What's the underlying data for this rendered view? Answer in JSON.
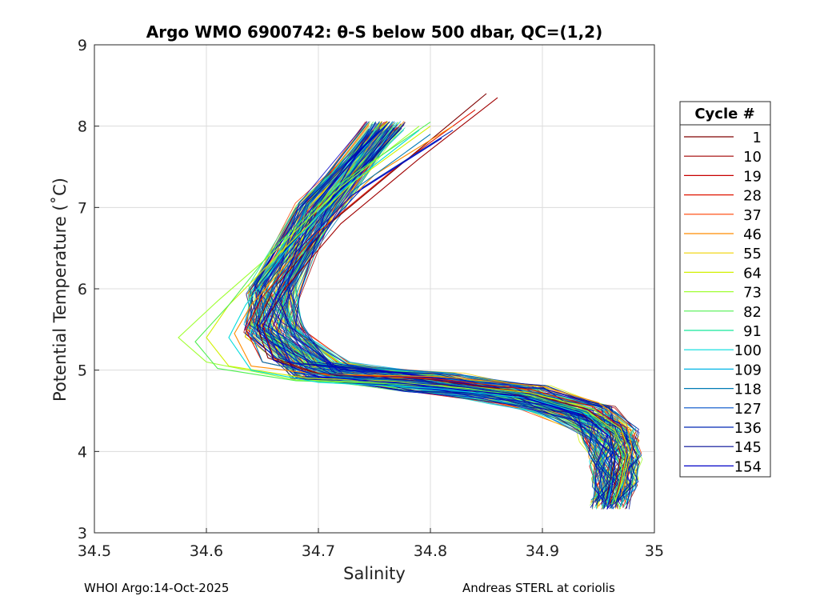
{
  "chart_data": {
    "type": "line",
    "title": "Argo WMO 6900742: θ-S below 500 dbar,  QC=(1,2)",
    "xlabel": "Salinity",
    "ylabel": "Potential Temperature (˚C)",
    "xlim": [
      34.5,
      35
    ],
    "ylim": [
      3,
      9
    ],
    "xticks": [
      "34.5",
      "34.6",
      "34.7",
      "34.8",
      "34.9",
      "35"
    ],
    "yticks": [
      "3",
      "4",
      "5",
      "6",
      "7",
      "8",
      "9"
    ],
    "grid": true,
    "legend": {
      "title": "Cycle #",
      "placement": "outside-right",
      "entries": [
        {
          "label": "1",
          "color": "#800000"
        },
        {
          "label": "10",
          "color": "#a00000"
        },
        {
          "label": "19",
          "color": "#c80000"
        },
        {
          "label": "28",
          "color": "#e01400"
        },
        {
          "label": "37",
          "color": "#ff4000"
        },
        {
          "label": "46",
          "color": "#ff8c00"
        },
        {
          "label": "55",
          "color": "#f0d200"
        },
        {
          "label": "64",
          "color": "#d2f000"
        },
        {
          "label": "73",
          "color": "#a0ff32"
        },
        {
          "label": "82",
          "color": "#50f050"
        },
        {
          "label": "91",
          "color": "#14e69b"
        },
        {
          "label": "100",
          "color": "#00dcdc"
        },
        {
          "label": "109",
          "color": "#00b4e6"
        },
        {
          "label": "118",
          "color": "#007ab4"
        },
        {
          "label": "127",
          "color": "#0050c8"
        },
        {
          "label": "136",
          "color": "#0028b4"
        },
        {
          "label": "145",
          "color": "#000a96"
        },
        {
          "label": "154",
          "color": "#0000c8"
        }
      ]
    },
    "typical_profile": {
      "salinity": [
        34.76,
        34.7,
        34.66,
        34.66,
        34.7,
        34.8,
        34.88,
        34.94,
        34.96,
        34.965,
        34.965,
        34.96
      ],
      "potential_temperature": [
        8.0,
        7.0,
        6.0,
        5.5,
        5.0,
        4.85,
        4.7,
        4.45,
        4.2,
        3.9,
        3.6,
        3.35
      ]
    },
    "series": [
      {
        "name": "1",
        "salinity": [
          34.85,
          34.78,
          34.71,
          34.66,
          34.645,
          34.655,
          34.7,
          34.78,
          34.87,
          34.93,
          34.96,
          34.965,
          34.96,
          34.955
        ],
        "potential_temperature": [
          8.4,
          7.6,
          6.8,
          6.0,
          5.55,
          5.15,
          4.95,
          4.88,
          4.72,
          4.5,
          4.25,
          3.95,
          3.6,
          3.3
        ]
      },
      {
        "name": "10",
        "salinity": [
          34.86,
          34.79,
          34.72,
          34.67,
          34.65,
          34.66,
          34.7,
          34.79,
          34.88,
          34.94,
          34.965,
          34.97,
          34.965,
          34.96
        ],
        "potential_temperature": [
          8.35,
          7.6,
          6.8,
          6.0,
          5.55,
          5.15,
          4.96,
          4.9,
          4.74,
          4.52,
          4.25,
          3.95,
          3.6,
          3.35
        ]
      },
      {
        "name": "28",
        "salinity": [
          34.84,
          34.77,
          34.7,
          34.65,
          34.635,
          34.65,
          34.7,
          34.8,
          34.89,
          34.945,
          34.97,
          34.975,
          34.97,
          34.965
        ],
        "potential_temperature": [
          8.2,
          7.5,
          6.7,
          5.9,
          5.5,
          5.1,
          4.95,
          4.9,
          4.76,
          4.55,
          4.3,
          4.0,
          3.65,
          3.4
        ]
      },
      {
        "name": "46",
        "salinity": [
          34.82,
          34.75,
          34.69,
          34.64,
          34.625,
          34.64,
          34.7,
          34.81,
          34.9,
          34.95,
          34.975,
          34.98,
          34.975,
          34.97
        ],
        "potential_temperature": [
          8.0,
          7.4,
          6.6,
          5.8,
          5.45,
          5.05,
          4.95,
          4.92,
          4.8,
          4.6,
          4.35,
          4.05,
          3.7,
          3.45
        ]
      },
      {
        "name": "64",
        "salinity": [
          34.8,
          34.73,
          34.67,
          34.62,
          34.6,
          34.62,
          34.69,
          34.8,
          34.89,
          34.945,
          34.97,
          34.978,
          34.972,
          34.965
        ],
        "potential_temperature": [
          8.0,
          7.3,
          6.5,
          5.8,
          5.4,
          5.05,
          4.9,
          4.85,
          4.72,
          4.52,
          4.28,
          4.0,
          3.65,
          3.4
        ]
      },
      {
        "name": "73",
        "salinity": [
          34.79,
          34.72,
          34.66,
          34.61,
          34.575,
          34.6,
          34.68,
          34.78,
          34.88,
          34.94,
          34.965,
          34.975,
          34.97,
          34.965
        ],
        "potential_temperature": [
          8.0,
          7.25,
          6.45,
          5.85,
          5.4,
          5.1,
          4.88,
          4.84,
          4.72,
          4.5,
          4.25,
          3.95,
          3.6,
          3.38
        ]
      },
      {
        "name": "82",
        "salinity": [
          34.8,
          34.72,
          34.66,
          34.62,
          34.59,
          34.61,
          34.68,
          34.79,
          34.88,
          34.94,
          34.965,
          34.972,
          34.968,
          34.962
        ],
        "potential_temperature": [
          8.05,
          7.3,
          6.5,
          5.8,
          5.35,
          5.02,
          4.87,
          4.82,
          4.7,
          4.48,
          4.22,
          3.92,
          3.6,
          3.35
        ]
      },
      {
        "name": "100",
        "salinity": [
          34.79,
          34.72,
          34.67,
          34.635,
          34.62,
          34.64,
          34.7,
          34.8,
          34.89,
          34.94,
          34.96,
          34.965,
          34.962,
          34.958
        ],
        "potential_temperature": [
          7.95,
          7.2,
          6.45,
          5.8,
          5.4,
          5.0,
          4.85,
          4.78,
          4.65,
          4.45,
          4.2,
          3.9,
          3.6,
          3.35
        ]
      },
      {
        "name": "118",
        "salinity": [
          34.8,
          34.73,
          34.68,
          34.65,
          34.64,
          34.65,
          34.71,
          34.81,
          34.89,
          34.94,
          34.96,
          34.965,
          34.962,
          34.955
        ],
        "potential_temperature": [
          7.9,
          7.2,
          6.4,
          5.8,
          5.45,
          5.1,
          4.92,
          4.84,
          4.7,
          4.48,
          4.22,
          3.92,
          3.6,
          3.32
        ]
      },
      {
        "name": "136",
        "salinity": [
          34.82,
          34.74,
          34.69,
          34.665,
          34.655,
          34.665,
          34.71,
          34.8,
          34.88,
          34.935,
          34.958,
          34.962,
          34.96,
          34.955
        ],
        "potential_temperature": [
          7.95,
          7.25,
          6.5,
          5.9,
          5.5,
          5.15,
          4.95,
          4.85,
          4.7,
          4.48,
          4.2,
          3.9,
          3.55,
          3.3
        ]
      },
      {
        "name": "154",
        "salinity": [
          34.81,
          34.73,
          34.68,
          34.66,
          34.65,
          34.66,
          34.7,
          34.79,
          34.88,
          34.935,
          34.96,
          34.965,
          34.962,
          34.958
        ],
        "potential_temperature": [
          7.85,
          7.15,
          6.45,
          5.85,
          5.5,
          5.12,
          4.92,
          4.82,
          4.68,
          4.45,
          4.18,
          3.88,
          3.55,
          3.3
        ]
      }
    ]
  },
  "footer": {
    "left": "WHOI Argo:14-Oct-2025",
    "right": "Andreas STERL at coriolis"
  }
}
